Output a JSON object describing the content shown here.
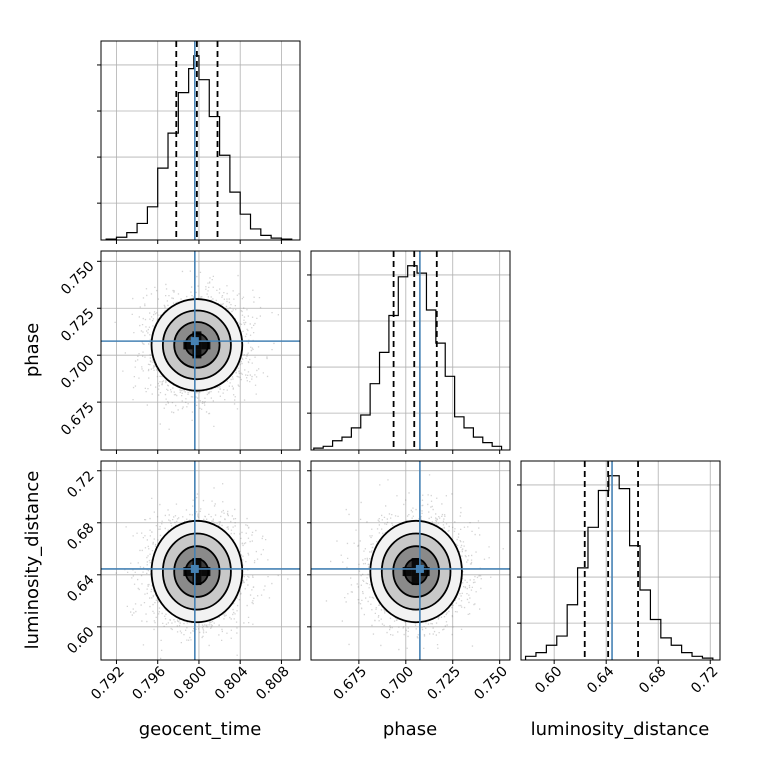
{
  "chart_data": {
    "type": "corner",
    "parameters": [
      "geocent_time",
      "phase",
      "luminosity_distance"
    ],
    "axis_labels": {
      "geocent_time": "geocent_time",
      "phase": "phase",
      "luminosity_distance": "luminosity_distance"
    },
    "ranges": {
      "geocent_time": [
        0.7905,
        0.8098
      ],
      "phase": [
        0.6495,
        0.7555
      ],
      "luminosity_distance": [
        0.5745,
        0.7275
      ]
    },
    "ticks": {
      "geocent_time": [
        "0.792",
        "0.796",
        "0.800",
        "0.804",
        "0.808"
      ],
      "phase": [
        "0.675",
        "0.700",
        "0.725",
        "0.750"
      ],
      "luminosity_distance": [
        "0.60",
        "0.64",
        "0.68",
        "0.72"
      ]
    },
    "truths": {
      "geocent_time": 0.7996,
      "phase": 0.7075,
      "luminosity_distance": 0.6445
    },
    "quantiles": {
      "geocent_time": [
        0.7978,
        0.7998,
        0.8018
      ],
      "phase": [
        0.6935,
        0.7045,
        0.7165
      ],
      "luminosity_distance": [
        0.6235,
        0.6415,
        0.6645
      ]
    },
    "histograms": {
      "geocent_time": {
        "edges": [
          0.791,
          0.792,
          0.793,
          0.794,
          0.795,
          0.796,
          0.797,
          0.798,
          0.799,
          0.7995,
          0.8,
          0.801,
          0.802,
          0.803,
          0.804,
          0.805,
          0.806,
          0.807,
          0.808,
          0.809
        ],
        "counts": [
          0.005,
          0.015,
          0.04,
          0.09,
          0.18,
          0.39,
          0.58,
          0.8,
          0.93,
          1.0,
          0.87,
          0.67,
          0.46,
          0.26,
          0.14,
          0.06,
          0.025,
          0.01,
          0.005
        ]
      },
      "phase": {
        "edges": [
          0.651,
          0.656,
          0.661,
          0.666,
          0.671,
          0.676,
          0.681,
          0.686,
          0.691,
          0.696,
          0.701,
          0.706,
          0.711,
          0.716,
          0.721,
          0.726,
          0.731,
          0.736,
          0.741,
          0.746,
          0.751
        ],
        "counts": [
          0.01,
          0.02,
          0.05,
          0.07,
          0.12,
          0.19,
          0.36,
          0.53,
          0.73,
          0.94,
          1.0,
          0.96,
          0.76,
          0.58,
          0.4,
          0.18,
          0.12,
          0.07,
          0.04,
          0.02
        ]
      },
      "luminosity_distance": {
        "edges": [
          0.578,
          0.586,
          0.594,
          0.602,
          0.61,
          0.618,
          0.626,
          0.634,
          0.642,
          0.65,
          0.658,
          0.666,
          0.674,
          0.682,
          0.69,
          0.698,
          0.706,
          0.714,
          0.722
        ],
        "counts": [
          0.02,
          0.04,
          0.08,
          0.13,
          0.3,
          0.5,
          0.72,
          0.92,
          1.0,
          0.93,
          0.62,
          0.38,
          0.22,
          0.12,
          0.08,
          0.04,
          0.02,
          0.01
        ]
      }
    },
    "gaussian_model": {
      "geocent_time": {
        "mean": 0.7998,
        "sd": 0.0022
      },
      "phase": {
        "mean": 0.7055,
        "sd": 0.0122
      },
      "luminosity_distance": {
        "mean": 0.6425,
        "sd": 0.0195
      }
    },
    "contour_levels_sigma": [
      0.5,
      1.0,
      1.5,
      2.0
    ],
    "grid": true,
    "colors": {
      "truth": "#4682b4",
      "hist": "#000000",
      "contour": "#000000",
      "grid": "#b0b0b0",
      "points": "#808080"
    }
  }
}
